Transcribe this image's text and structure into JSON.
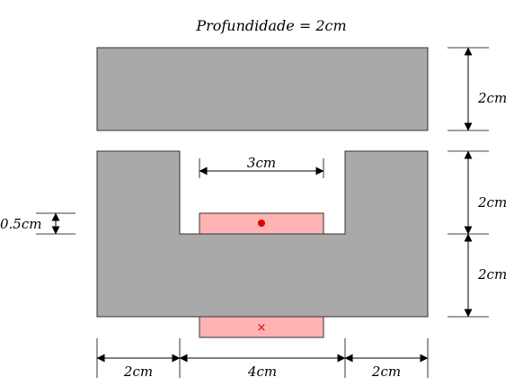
{
  "title": "Profundidade = 2cm",
  "colors": {
    "core": "#a9a9a9",
    "core_stroke": "#333333",
    "coil": "#ffb3b3",
    "coil_stroke": "#333333",
    "marker": "#e00000"
  },
  "dimensions": {
    "top_bar_height": "2cm",
    "slot_width": "3cm",
    "leg_height_upper": "2cm",
    "leg_height_lower": "2cm",
    "coil_offset": "0.5cm",
    "left_leg_width": "2cm",
    "center_width": "4cm",
    "right_leg_width": "2cm"
  },
  "markers": {
    "dot": "current-out-dot",
    "cross": "×"
  }
}
